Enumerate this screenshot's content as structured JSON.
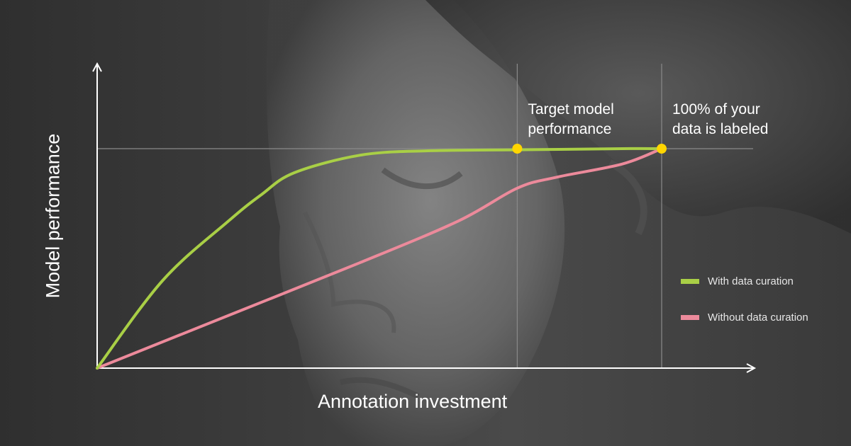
{
  "colors": {
    "with_curation": "#a9cf46",
    "without_curation": "#ec8a9b",
    "marker": "#ffd500",
    "axis": "#ffffff",
    "guide": "#8a8a8a"
  },
  "chart_data": {
    "type": "line",
    "xlabel": "Annotation investment",
    "ylabel": "Model performance",
    "xlim": [
      0,
      100
    ],
    "ylim": [
      0,
      100
    ],
    "grid": false,
    "legend_position": "right",
    "series": [
      {
        "name": "With data curation",
        "color": "#a9cf46",
        "x": [
          0,
          10,
          20,
          25,
          30,
          40,
          50,
          65,
          80,
          86
        ],
        "y": [
          0,
          40,
          67,
          79,
          89,
          97,
          99,
          99.5,
          100,
          100
        ]
      },
      {
        "name": "Without data curation",
        "color": "#ec8a9b",
        "x": [
          0,
          20,
          40,
          55,
          64,
          70,
          80,
          86
        ],
        "y": [
          0,
          24,
          48,
          67,
          82,
          87,
          93,
          100
        ]
      }
    ],
    "annotations": [
      {
        "text": "Target model\nperformance",
        "x": 64,
        "y": 100
      },
      {
        "text": "100% of your\ndata is labeled",
        "x": 86,
        "y": 100
      }
    ]
  }
}
